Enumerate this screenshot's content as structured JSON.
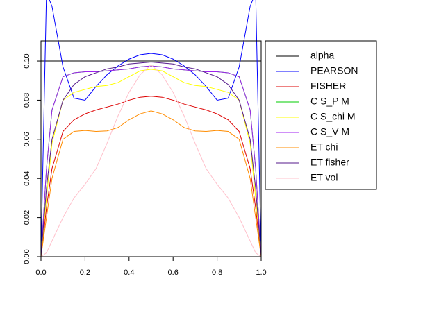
{
  "chart_data": {
    "type": "line",
    "x": [
      0,
      0.025,
      0.05,
      0.1,
      0.15,
      0.2,
      0.25,
      0.3,
      0.35,
      0.4,
      0.45,
      0.5,
      0.55,
      0.6,
      0.65,
      0.7,
      0.75,
      0.8,
      0.85,
      0.9,
      0.95,
      0.975,
      1
    ],
    "xlim": [
      0,
      1
    ],
    "xticks": [
      {
        "value": 0,
        "label": "0.0"
      },
      0.2,
      0.4,
      0.6,
      0.8,
      {
        "value": 1,
        "label": "1.0"
      }
    ],
    "ylim": [
      0,
      0.1103
    ],
    "yticks": [
      {
        "value": 0,
        "label": "0.00"
      },
      0.02,
      0.04,
      0.06,
      0.08,
      {
        "value": 0.1,
        "label": "0.10"
      }
    ],
    "legend": "right",
    "series": [
      {
        "name": "alpha",
        "color": "#000000",
        "values": [
          0.1,
          0.1,
          0.1,
          0.1,
          0.1,
          0.1,
          0.1,
          0.1,
          0.1,
          0.1,
          0.1,
          0.1,
          0.1,
          0.1,
          0.1,
          0.1,
          0.1,
          0.1,
          0.1,
          0.1,
          0.1,
          0.1,
          0.1
        ]
      },
      {
        "name": "PEARSON",
        "color": "#0000ff",
        "values": [
          0,
          0.135,
          0.128,
          0.097,
          0.081,
          0.08,
          0.087,
          0.093,
          0.0975,
          0.101,
          0.1032,
          0.1039,
          0.1032,
          0.101,
          0.0975,
          0.093,
          0.087,
          0.08,
          0.081,
          0.097,
          0.128,
          0.135,
          0
        ]
      },
      {
        "name": "FISHER",
        "color": "#dd0000",
        "values": [
          0,
          0.025,
          0.045,
          0.064,
          0.07,
          0.073,
          0.075,
          0.0765,
          0.078,
          0.08,
          0.0815,
          0.082,
          0.0815,
          0.08,
          0.078,
          0.0765,
          0.075,
          0.073,
          0.07,
          0.064,
          0.045,
          0.025,
          0
        ]
      },
      {
        "name": "C S_P M",
        "color": "#00cc00",
        "values": [
          0,
          0.045,
          0.075,
          0.092,
          0.094,
          0.0945,
          0.0945,
          0.095,
          0.0955,
          0.096,
          0.097,
          0.0975,
          0.097,
          0.096,
          0.0955,
          0.095,
          0.0945,
          0.0945,
          0.094,
          0.092,
          0.075,
          0.045,
          0
        ]
      },
      {
        "name": "C S_chi M",
        "color": "#ffff00",
        "values": [
          0,
          0.03,
          0.058,
          0.08,
          0.084,
          0.0855,
          0.087,
          0.0875,
          0.089,
          0.092,
          0.095,
          0.0958,
          0.095,
          0.092,
          0.089,
          0.0875,
          0.087,
          0.0855,
          0.084,
          0.08,
          0.058,
          0.03,
          0
        ]
      },
      {
        "name": "C S_V M",
        "color": "#a020f0",
        "values": [
          0,
          0.045,
          0.075,
          0.092,
          0.094,
          0.0945,
          0.0945,
          0.095,
          0.0955,
          0.096,
          0.097,
          0.0975,
          0.097,
          0.096,
          0.0955,
          0.095,
          0.0945,
          0.0945,
          0.094,
          0.092,
          0.075,
          0.045,
          0
        ]
      },
      {
        "name": "ET chi",
        "color": "#ff8c00",
        "values": [
          0,
          0.02,
          0.04,
          0.06,
          0.064,
          0.0645,
          0.064,
          0.0643,
          0.066,
          0.07,
          0.073,
          0.0745,
          0.073,
          0.07,
          0.066,
          0.0643,
          0.064,
          0.0645,
          0.064,
          0.06,
          0.04,
          0.02,
          0
        ]
      },
      {
        "name": "ET fisher",
        "color": "#551a8b",
        "values": [
          0,
          0.035,
          0.06,
          0.08,
          0.088,
          0.092,
          0.094,
          0.096,
          0.097,
          0.0985,
          0.099,
          0.0995,
          0.099,
          0.0985,
          0.097,
          0.096,
          0.094,
          0.092,
          0.088,
          0.08,
          0.06,
          0.035,
          0
        ]
      },
      {
        "name": "ET vol",
        "color": "#ffc0cb",
        "values": [
          0,
          0.002,
          0.008,
          0.02,
          0.03,
          0.037,
          0.045,
          0.058,
          0.072,
          0.084,
          0.093,
          0.098,
          0.093,
          0.084,
          0.072,
          0.058,
          0.045,
          0.037,
          0.03,
          0.02,
          0.008,
          0.002,
          0
        ]
      }
    ]
  }
}
